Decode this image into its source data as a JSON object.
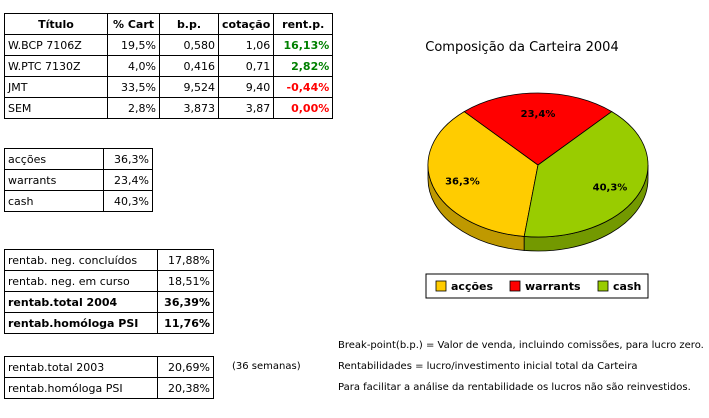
{
  "holdings": {
    "headers": [
      "Título",
      "% Cart",
      "b.p.",
      "cotação",
      "rent.p."
    ],
    "rows": [
      {
        "titulo": "W.BCP 7106Z",
        "cart": "19,5%",
        "bp": "0,580",
        "cotacao": "1,06",
        "rent": "16,13%"
      },
      {
        "titulo": "W.PTC 7130Z",
        "cart": "4,0%",
        "bp": "0,416",
        "cotacao": "0,71",
        "rent": "2,82%"
      },
      {
        "titulo": "JMT",
        "cart": "33,5%",
        "bp": "9,524",
        "cotacao": "9,40",
        "rent": "-0,44%"
      },
      {
        "titulo": "SEM",
        "cart": "2,8%",
        "bp": "3,873",
        "cotacao": "3,87",
        "rent": "0,00%"
      }
    ]
  },
  "allocation": [
    {
      "label": "acções",
      "value": "36,3%"
    },
    {
      "label": "warrants",
      "value": "23,4%"
    },
    {
      "label": "cash",
      "value": "40,3%"
    }
  ],
  "returns": [
    {
      "label": "rentab. neg. concluídos",
      "value": "17,88%"
    },
    {
      "label": "rentab. neg. em curso",
      "value": "18,51%"
    },
    {
      "label": "rentab.total 2004",
      "value": "36,39%"
    },
    {
      "label": "rentab.homóloga PSI",
      "value": "11,76%"
    }
  ],
  "history": [
    {
      "label": "rentab.total 2003",
      "value": "20,69%"
    },
    {
      "label": "rentab.homóloga PSI",
      "value": "20,38%"
    }
  ],
  "weeks_note": "(36 semanas)",
  "notes": [
    "Break-point(b.p.) = Valor de venda, incluindo comissões, para lucro zero.",
    "Rentabilidades = lucro/investimento inicial total da Carteira",
    "Para facilitar a análise da rentabilidade os lucros não são reinvestidos."
  ],
  "colors": {
    "accoes": "#ffcc00",
    "warrants": "#ff0000",
    "cash": "#99cc00",
    "positive": "#008000",
    "negative": "#ff0000"
  },
  "chart_data": {
    "type": "pie",
    "title": "Composição da Carteira 2004",
    "categories": [
      "acções",
      "warrants",
      "cash"
    ],
    "values": [
      36.3,
      23.4,
      40.3
    ],
    "value_labels": [
      "36,3%",
      "23,4%",
      "40,3%"
    ],
    "colors": [
      "#ffcc00",
      "#ff0000",
      "#99cc00"
    ],
    "legend_position": "bottom"
  }
}
